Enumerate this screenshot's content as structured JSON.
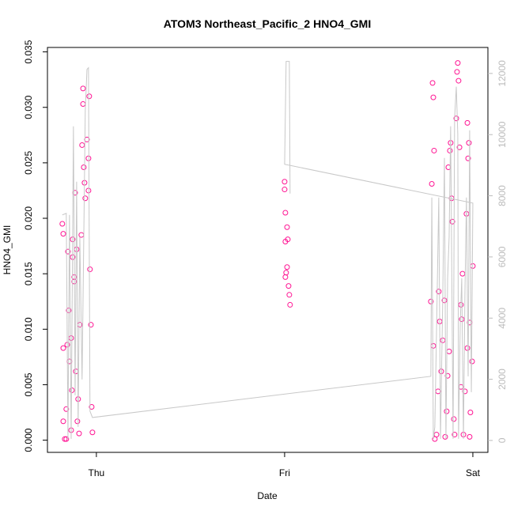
{
  "chart_data": {
    "type": "scatter",
    "title": "ATOM3 Northeast_Pacific_2 HNO4_GMI",
    "x_label": "Date",
    "y_label": "HNO4_GMI",
    "xlim": [
      -0.26,
      2.08
    ],
    "xticks": [
      {
        "value": 0,
        "label": "Thu"
      },
      {
        "value": 1,
        "label": "Fri"
      },
      {
        "value": 2,
        "label": "Sat"
      }
    ],
    "ylim": [
      -0.0011,
      0.0354
    ],
    "yticks": [
      {
        "value": 0,
        "label": "0.000"
      },
      {
        "value": 0.005,
        "label": "0.005"
      },
      {
        "value": 0.01,
        "label": "0.010"
      },
      {
        "value": 0.015,
        "label": "0.015"
      },
      {
        "value": 0.02,
        "label": "0.020"
      },
      {
        "value": 0.025,
        "label": "0.025"
      },
      {
        "value": 0.03,
        "label": "0.030"
      },
      {
        "value": 0.035,
        "label": "0.035"
      }
    ],
    "y2lim": [
      -390,
      12850
    ],
    "y2ticks": [
      0,
      2000,
      4000,
      6000,
      8000,
      10000,
      12000
    ],
    "y2_color": "#bbbbbb",
    "series": [
      {
        "type": "scatter",
        "color": "#ff1493",
        "x": [
          -0.176,
          -0.176,
          -0.181,
          -0.176,
          -0.168,
          -0.16,
          -0.155,
          -0.151,
          -0.147,
          -0.143,
          -0.134,
          -0.13,
          -0.126,
          -0.118,
          -0.113,
          -0.109,
          -0.105,
          -0.101,
          -0.097,
          -0.088,
          -0.08,
          -0.076,
          -0.071,
          -0.067,
          -0.063,
          -0.059,
          -0.05,
          -0.042,
          -0.038,
          -0.034,
          -0.029,
          -0.025,
          -0.021,
          -0.16,
          -0.134,
          -0.092,
          -0.071,
          -0.042,
          -0.118,
          -0.126,
          1.0,
          1.0,
          1.004,
          1.004,
          1.013,
          1.017,
          1.008,
          1.013,
          1.021,
          1.025,
          1.029,
          1.004,
          1.777,
          1.782,
          1.786,
          1.79,
          1.794,
          1.79,
          1.798,
          1.807,
          1.815,
          1.819,
          1.824,
          1.832,
          1.84,
          1.849,
          1.853,
          1.861,
          1.866,
          1.87,
          1.874,
          1.878,
          1.882,
          1.887,
          1.891,
          1.899,
          1.903,
          1.912,
          1.916,
          1.92,
          1.924,
          1.929,
          1.937,
          1.941,
          1.95,
          1.958,
          1.966,
          1.971,
          1.975,
          1.979,
          1.983,
          1.987,
          1.996,
          2.0,
          1.983,
          1.971,
          1.945,
          1.937
        ],
        "values": [
          0.0017,
          0.0083,
          0.0195,
          0.0186,
          0.0001,
          0.0028,
          0.0086,
          0.017,
          0.0117,
          0.0071,
          0.0092,
          0.0045,
          0.0181,
          0.0143,
          0.0223,
          0.0062,
          0.0172,
          0.0017,
          0.0037,
          0.0104,
          0.0185,
          0.0266,
          0.0317,
          0.0246,
          0.0232,
          0.0218,
          0.0271,
          0.0254,
          0.031,
          0.0154,
          0.0104,
          0.003,
          0.0007,
          0.0001,
          0.0009,
          0.0006,
          0.0303,
          0.0225,
          0.0147,
          0.0165,
          0.0233,
          0.0226,
          0.0205,
          0.0179,
          0.0192,
          0.0181,
          0.0151,
          0.0156,
          0.0139,
          0.0131,
          0.0122,
          0.0147,
          0.0125,
          0.0231,
          0.0322,
          0.0309,
          0.0261,
          0.0085,
          0.0001,
          0.0005,
          0.0044,
          0.0134,
          0.0107,
          0.0062,
          0.009,
          0.0126,
          0.0003,
          0.0026,
          0.0058,
          0.0246,
          0.008,
          0.0261,
          0.0268,
          0.0218,
          0.0197,
          0.0019,
          0.0005,
          0.029,
          0.0332,
          0.034,
          0.0324,
          0.0264,
          0.0048,
          0.0109,
          0.0005,
          0.0044,
          0.0204,
          0.0286,
          0.0254,
          0.0268,
          0.0106,
          0.0025,
          0.0071,
          0.0157,
          0.0003,
          0.0083,
          0.015,
          0.0122
        ]
      },
      {
        "type": "line",
        "axis": "y2",
        "color": "#c8c8c8",
        "x": [
          -0.181,
          -0.16,
          -0.151,
          -0.143,
          -0.134,
          -0.122,
          -0.113,
          -0.105,
          -0.097,
          -0.088,
          -0.076,
          -0.059,
          -0.05,
          -0.042,
          -0.034,
          -0.021,
          1.777,
          1.782,
          1.79,
          1.798,
          1.807,
          1.819,
          1.828,
          1.84,
          1.849,
          1.857,
          1.866,
          1.874,
          1.882,
          1.895,
          1.903,
          1.912,
          1.92,
          1.924,
          1.933,
          1.941,
          1.95,
          1.958,
          1.966,
          1.975,
          1.983,
          1.992,
          2.0,
          1.0,
          1.008,
          1.025,
          1.029
        ],
        "values": [
          7374,
          7426,
          52,
          7374,
          52,
          10272,
          1475,
          8461,
          440,
          6649,
          1992,
          10789,
          12134,
          12186,
          957,
          750,
          2096,
          7943,
          52,
          440,
          3545,
          7943,
          52,
          4580,
          9237,
          52,
          5304,
          6649,
          10272,
          52,
          10530,
          11565,
          10013,
          52,
          3803,
          5304,
          52,
          4838,
          7943,
          2096,
          10142,
          1578,
          7762,
          9030,
          12393,
          12393,
          8072
        ]
      }
    ]
  }
}
